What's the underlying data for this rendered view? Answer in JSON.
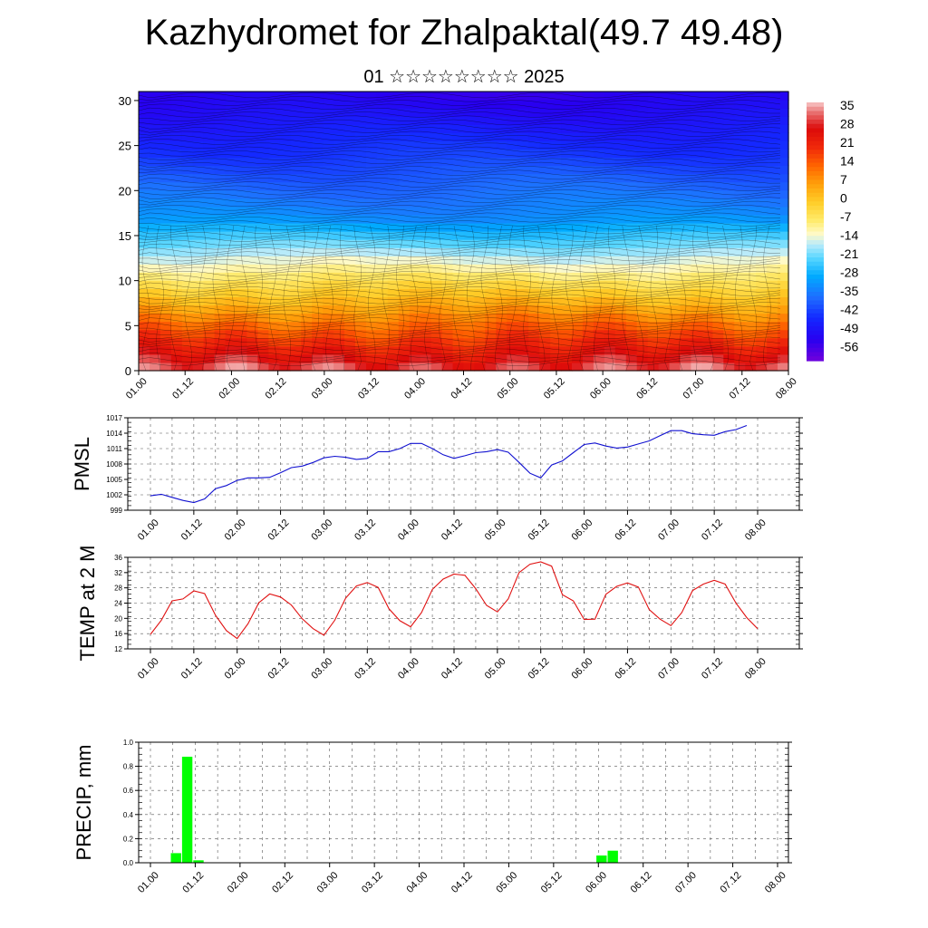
{
  "title": "Kazhydromet for Zhalpaktal(49.7 49.48)",
  "subtitle": "01 ☆☆☆☆☆☆☆☆ 2025",
  "colors": {
    "pmsl_line": "#1010d0",
    "temp_line": "#e01010",
    "precip_bar": "#00ff00"
  },
  "chart_data": [
    {
      "type": "heatmap",
      "name": "cross-section",
      "x_ticks": [
        "01.00",
        "01.12",
        "02.00",
        "02.12",
        "03.00",
        "03.12",
        "04.00",
        "04.12",
        "05.00",
        "05.12",
        "06.00",
        "06.12",
        "07.00",
        "07.12",
        "08.00"
      ],
      "y_ticks": [
        "0",
        "5",
        "10",
        "15",
        "20",
        "25",
        "30"
      ],
      "ylim": [
        0,
        31
      ],
      "colorbar_labels": [
        "35",
        "28",
        "21",
        "14",
        "7",
        "0",
        "-7",
        "-14",
        "-21",
        "-28",
        "-35",
        "-42",
        "-49",
        "-56"
      ],
      "colorbar_range": [
        -60,
        38
      ]
    },
    {
      "type": "line",
      "ylabel": "PMSL",
      "x_ticks": [
        "01.00",
        "01.12",
        "02.00",
        "02.12",
        "03.00",
        "03.12",
        "04.00",
        "04.12",
        "05.00",
        "05.12",
        "06.00",
        "06.12",
        "07.00",
        "07.12",
        "08.00"
      ],
      "y_ticks": [
        "1017",
        "1014",
        "1011",
        "1008",
        "1005",
        "1002",
        "999"
      ],
      "ylim": [
        999,
        1017
      ],
      "values": [
        1001.8,
        1002.1,
        1001.5,
        1000.9,
        1000.5,
        1001.2,
        1003.2,
        1003.8,
        1004.8,
        1005.3,
        1005.3,
        1005.4,
        1006.3,
        1007.3,
        1007.6,
        1008.3,
        1009.2,
        1009.5,
        1009.3,
        1008.9,
        1009.1,
        1010.4,
        1010.4,
        1011.0,
        1012.0,
        1012.0,
        1011.0,
        1009.8,
        1009.1,
        1009.6,
        1010.2,
        1010.4,
        1010.8,
        1010.3,
        1008.3,
        1006.2,
        1005.3,
        1007.8,
        1008.6,
        1010.2,
        1011.8,
        1012.1,
        1011.5,
        1011.1,
        1011.3,
        1011.9,
        1012.5,
        1013.5,
        1014.5,
        1014.5,
        1013.9,
        1013.7,
        1013.6,
        1014.3,
        1014.7,
        1015.5
      ],
      "x_step_hours": 3
    },
    {
      "type": "line",
      "ylabel": "TEMP at 2 M",
      "x_ticks": [
        "01.00",
        "01.12",
        "02.00",
        "02.12",
        "03.00",
        "03.12",
        "04.00",
        "04.12",
        "05.00",
        "05.12",
        "06.00",
        "06.12",
        "07.00",
        "07.12",
        "08.00"
      ],
      "y_ticks": [
        "36",
        "32",
        "28",
        "24",
        "20",
        "16",
        "12"
      ],
      "ylim": [
        12,
        36
      ],
      "values": [
        15.8,
        19.5,
        24.6,
        25.1,
        27.2,
        26.5,
        20.8,
        16.8,
        14.7,
        18.6,
        24.1,
        26.4,
        25.6,
        23.5,
        19.9,
        17.3,
        15.6,
        19.5,
        25.3,
        28.5,
        29.4,
        28.1,
        22.5,
        19.4,
        17.8,
        21.5,
        27.6,
        30.3,
        31.6,
        31.3,
        27.8,
        23.4,
        21.7,
        25.1,
        32.0,
        34.2,
        34.8,
        33.7,
        26.2,
        24.6,
        19.7,
        19.8,
        26.3,
        28.4,
        29.3,
        28.2,
        22.3,
        19.8,
        18.1,
        21.5,
        27.3,
        29.0,
        30.0,
        29.0,
        24.0,
        20.2,
        17.3
      ],
      "x_step_hours": 3
    },
    {
      "type": "bar",
      "ylabel": "PRECIP, mm",
      "x_ticks": [
        "01.00",
        "01.12",
        "02.00",
        "02.12",
        "03.00",
        "03.12",
        "04.00",
        "04.12",
        "05.00",
        "05.12",
        "06.00",
        "06.12",
        "07.00",
        "07.12",
        "08.00"
      ],
      "y_ticks": [
        "1.0",
        "0.8",
        "0.6",
        "0.4",
        "0.2",
        "0.0"
      ],
      "ylim": [
        0,
        1.0
      ],
      "values": [
        0,
        0,
        0.08,
        0.88,
        0.02,
        0,
        0,
        0,
        0,
        0,
        0,
        0,
        0,
        0,
        0,
        0,
        0,
        0,
        0,
        0,
        0,
        0,
        0,
        0,
        0,
        0,
        0,
        0,
        0,
        0,
        0,
        0,
        0,
        0,
        0,
        0,
        0,
        0,
        0,
        0,
        0.06,
        0.1,
        0,
        0,
        0,
        0,
        0,
        0,
        0,
        0,
        0,
        0,
        0,
        0,
        0,
        0,
        0
      ],
      "x_step_hours": 3
    }
  ]
}
